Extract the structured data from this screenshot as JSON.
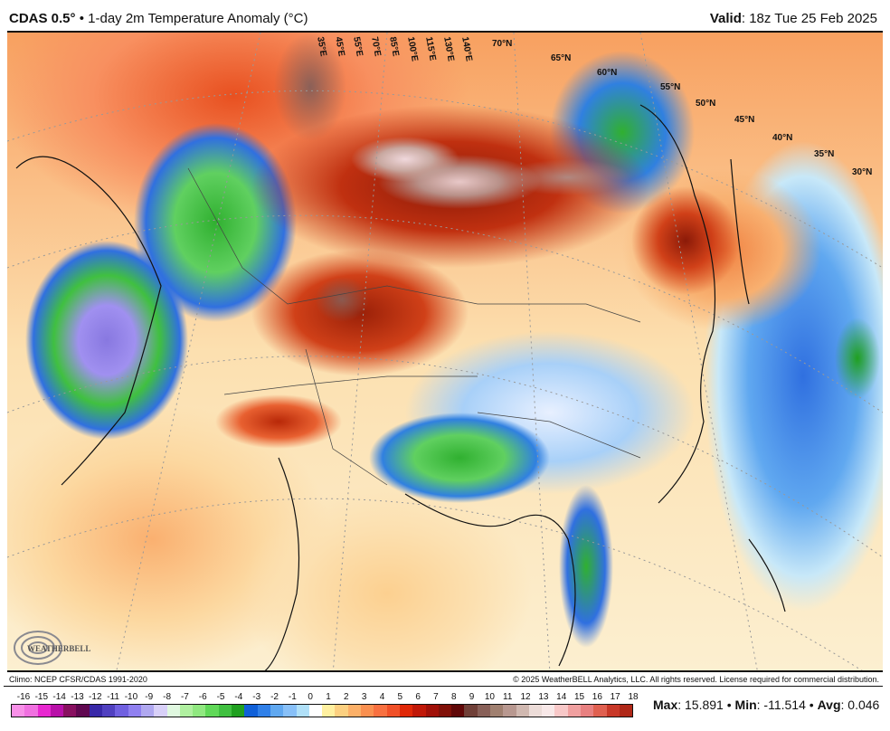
{
  "header": {
    "model": "CDAS 0.5",
    "degree": "°",
    "bullet": "•",
    "title": "1-day 2m Temperature Anomaly (°C)",
    "valid_label": "Valid",
    "valid_value": ": 18z Tue 25 Feb 2025"
  },
  "map": {
    "lon_labels": [
      "35°E",
      "45°E",
      "55°E",
      "70°E",
      "85°E",
      "100°E",
      "115°E",
      "130°E",
      "140°E"
    ],
    "lat_labels": [
      "70°N",
      "65°N",
      "60°N",
      "55°N",
      "50°N",
      "45°N",
      "40°N",
      "35°N",
      "30°N"
    ],
    "logo_text": "WeatherBELL"
  },
  "footer": {
    "climo": "Climo: NCEP CFSR/CDAS 1991-2020",
    "copyright": "© 2025 WeatherBELL Analytics, LLC. All rights reserved. License required for commercial distribution."
  },
  "colorbar": {
    "labels": [
      "-16",
      "-15",
      "-14",
      "-13",
      "-12",
      "-11",
      "-10",
      "-9",
      "-8",
      "-7",
      "-6",
      "-5",
      "-4",
      "-3",
      "-2",
      "-1",
      "0",
      "1",
      "2",
      "3",
      "4",
      "5",
      "6",
      "7",
      "8",
      "9",
      "10",
      "11",
      "12",
      "13",
      "14",
      "15",
      "16",
      "17",
      "18"
    ],
    "colors": [
      "#f890e8",
      "#f070e0",
      "#e828d0",
      "#b810a8",
      "#881060",
      "#600850",
      "#3828a8",
      "#5040c0",
      "#7060e0",
      "#9080f0",
      "#b0a8f0",
      "#d8d0f8",
      "#e0f8e0",
      "#b0f0a0",
      "#90e880",
      "#60d858",
      "#40c040",
      "#20a020",
      "#1060d8",
      "#3080e8",
      "#60a8f0",
      "#88c0f8",
      "#b0e0f8",
      "#ffffff",
      "#fff0a0",
      "#fcd080",
      "#fcb068",
      "#fa9050",
      "#f87040",
      "#f05028",
      "#e02808",
      "#c01808",
      "#a01008",
      "#801008",
      "#600808",
      "#704038",
      "#886058",
      "#a08070",
      "#b89890",
      "#d0b8b0",
      "#ecdcd8",
      "#f8e8e8",
      "#f8c8c8",
      "#f0a0a0",
      "#e88080",
      "#e06050",
      "#c83828",
      "#b02818"
    ],
    "stats": {
      "max_label": "Max",
      "max_value": ": 15.891",
      "min_label": "Min",
      "min_value": ": -11.514",
      "avg_label": "Avg",
      "avg_value": ": 0.046",
      "sep": "•"
    }
  }
}
